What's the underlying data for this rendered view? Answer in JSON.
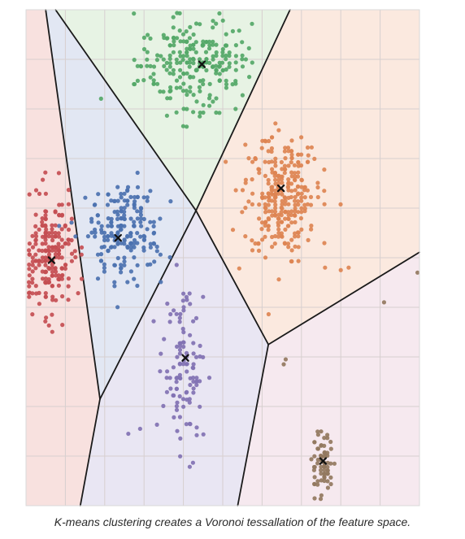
{
  "caption": "K-means clustering creates a Voronoi tessallation of the feature space.",
  "chart_data": {
    "type": "scatter",
    "title": "",
    "xlabel": "",
    "ylabel": "",
    "grid": true,
    "legend": "none",
    "xlim": [
      0,
      10
    ],
    "ylim": [
      0,
      10
    ],
    "xticks": [
      1,
      2,
      3,
      4,
      5,
      6,
      7,
      8,
      9
    ],
    "yticks": [
      1,
      2,
      3,
      4,
      5,
      6,
      7,
      8,
      9
    ],
    "voronoi_vertices": {
      "top_center": [
        4.32,
        5.95
      ],
      "bottom_center": [
        6.16,
        3.25
      ],
      "left_lower": [
        1.88,
        2.15
      ]
    },
    "voronoi_edges": [
      [
        "top_center",
        [
          0.75,
          10
        ]
      ],
      [
        "top_center",
        [
          6.71,
          10
        ]
      ],
      [
        "top_center",
        "bottom_center"
      ],
      [
        "top_center",
        "left_lower"
      ],
      [
        "bottom_center",
        [
          10,
          5.11
        ]
      ],
      [
        "bottom_center",
        [
          5.38,
          0
        ]
      ],
      [
        "left_lower",
        [
          1.38,
          0
        ]
      ],
      [
        "left_lower",
        [
          0.5,
          10
        ]
      ]
    ],
    "regions": [
      {
        "cluster": "green",
        "fill": "#e7f3e4"
      },
      {
        "cluster": "orange",
        "fill": "#fbe9df"
      },
      {
        "cluster": "blue",
        "fill": "#e2e7f3"
      },
      {
        "cluster": "red",
        "fill": "#f8e1df"
      },
      {
        "cluster": "purple",
        "fill": "#e9e6f3"
      },
      {
        "cluster": "brown",
        "fill": "#f6e9ef"
      }
    ],
    "centroids": [
      {
        "cluster": "green",
        "x": 4.47,
        "y": 8.9
      },
      {
        "cluster": "orange",
        "x": 6.48,
        "y": 6.4
      },
      {
        "cluster": "blue",
        "x": 2.34,
        "y": 5.4
      },
      {
        "cluster": "red",
        "x": 0.65,
        "y": 4.95
      },
      {
        "cluster": "purple",
        "x": 4.05,
        "y": 2.98
      },
      {
        "cluster": "brown",
        "x": 7.55,
        "y": 0.9
      }
    ],
    "clusters": [
      {
        "cluster": "green",
        "color": "#55a868",
        "center": [
          4.3,
          8.9
        ],
        "spread": [
          1.3,
          0.85
        ],
        "count": 240
      },
      {
        "cluster": "orange",
        "color": "#dd8452",
        "center": [
          6.45,
          6.3
        ],
        "spread": [
          0.85,
          1.1
        ],
        "count": 290
      },
      {
        "cluster": "blue",
        "color": "#4c72b0",
        "center": [
          2.5,
          5.55
        ],
        "spread": [
          0.8,
          0.9
        ],
        "count": 200
      },
      {
        "cluster": "red",
        "color": "#c44e52",
        "center": [
          0.6,
          5.0
        ],
        "spread": [
          0.55,
          1.05
        ],
        "count": 210
      },
      {
        "cluster": "purple",
        "color": "#8172b3",
        "center": [
          4.0,
          2.75
        ],
        "spread": [
          0.45,
          1.35
        ],
        "count": 110
      },
      {
        "cluster": "brown",
        "color": "#937860",
        "center": [
          7.55,
          0.85
        ],
        "spread": [
          0.25,
          0.55
        ],
        "count": 70
      }
    ],
    "outliers": [
      {
        "cluster": "orange",
        "x": 8.2,
        "y": 4.8
      },
      {
        "cluster": "orange",
        "x": 7.6,
        "y": 4.8
      },
      {
        "cluster": "orange",
        "x": 8.0,
        "y": 4.75
      },
      {
        "cluster": "brown",
        "x": 9.1,
        "y": 4.1
      },
      {
        "cluster": "brown",
        "x": 6.6,
        "y": 2.95
      },
      {
        "cluster": "brown",
        "x": 6.55,
        "y": 2.85
      },
      {
        "cluster": "brown",
        "x": 9.95,
        "y": 4.7
      },
      {
        "cluster": "purple",
        "x": 2.6,
        "y": 1.45
      },
      {
        "cluster": "purple",
        "x": 2.9,
        "y": 1.55
      }
    ]
  }
}
